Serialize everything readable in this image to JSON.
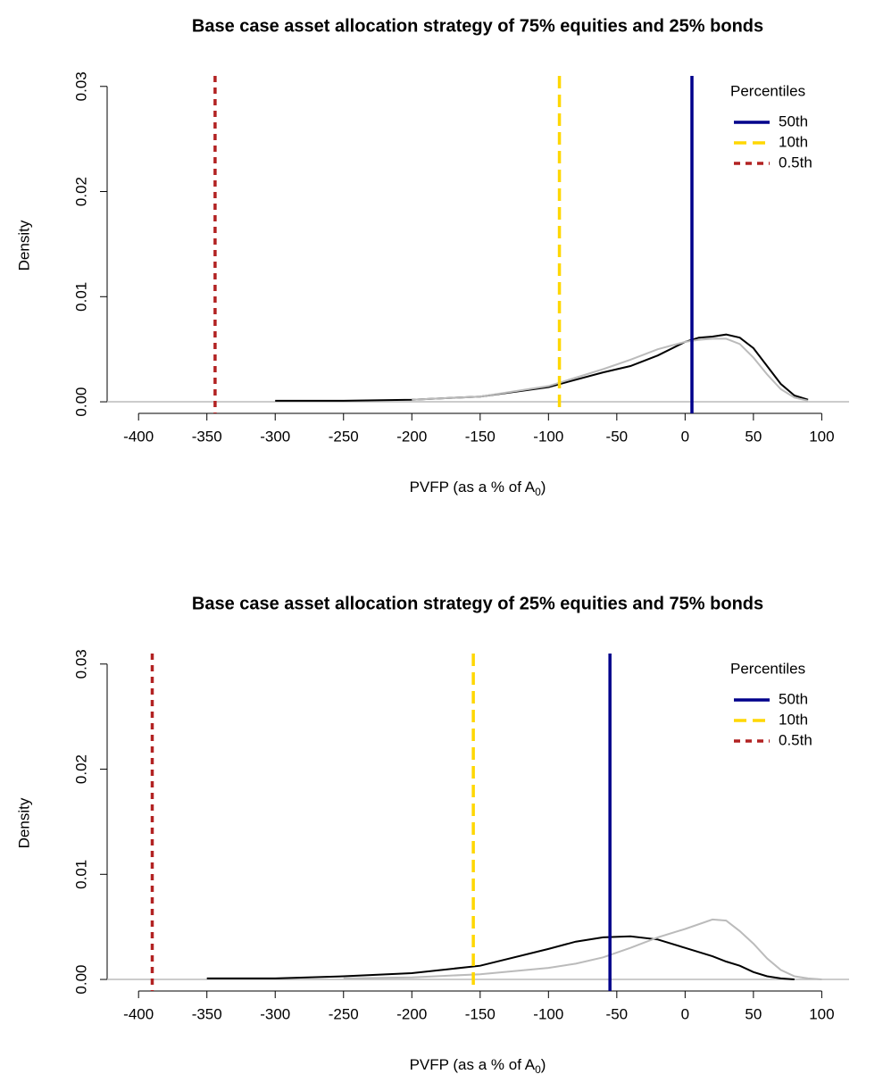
{
  "chart_data": [
    {
      "type": "line",
      "title": "Base case asset allocation strategy of 75% equities and 25% bonds",
      "x_label": {
        "text": "PVFP (as a % of A",
        "subscript": "0",
        "suffix": ")"
      },
      "y_label": "Density",
      "x": [
        -300,
        -250,
        -200,
        -150,
        -100,
        -80,
        -60,
        -40,
        -20,
        0,
        10,
        20,
        30,
        40,
        50,
        60,
        70,
        80,
        90,
        100
      ],
      "series": [
        {
          "color": "#000000",
          "values": [
            0.0001,
            0.0001,
            0.0002,
            0.0005,
            0.0014,
            0.0021,
            0.0028,
            0.0034,
            0.0044,
            0.0057,
            0.0061,
            0.0062,
            0.0064,
            0.0061,
            0.0051,
            0.0034,
            0.0017,
            0.0006,
            0.0002,
            null
          ]
        },
        {
          "color": "#bbbbbb",
          "values": [
            null,
            null,
            0.0002,
            0.0005,
            0.0015,
            0.0023,
            0.0031,
            0.004,
            0.005,
            0.0057,
            0.0059,
            0.006,
            0.006,
            0.0055,
            0.0042,
            0.0026,
            0.0012,
            0.0004,
            0.0001,
            null
          ]
        }
      ],
      "legend_title": "Percentiles",
      "percentiles": [
        {
          "name": "50th",
          "value": 5,
          "color": "#00008b",
          "linestyle": "solid"
        },
        {
          "name": "10th",
          "value": -92,
          "color": "#ffd700",
          "linestyle": "longdash"
        },
        {
          "name": "0.5th",
          "value": -344,
          "color": "#b22222",
          "linestyle": "dashed"
        }
      ],
      "xlim": [
        -423,
        120
      ],
      "xticks": [
        -400,
        -350,
        -300,
        -250,
        -200,
        -150,
        -100,
        -50,
        0,
        50,
        100
      ],
      "ylim": [
        -0.0011,
        0.031
      ],
      "yticks": [
        {
          "value": 0,
          "label": "0.00"
        },
        0.01,
        0.02,
        0.03
      ]
    },
    {
      "type": "line",
      "title": "Base case asset allocation strategy of 25% equities and 75% bonds",
      "x_label": {
        "text": "PVFP (as a % of A",
        "subscript": "0",
        "suffix": ")"
      },
      "y_label": "Density",
      "x": [
        -350,
        -300,
        -250,
        -200,
        -150,
        -100,
        -80,
        -60,
        -40,
        -20,
        0,
        20,
        30,
        40,
        50,
        60,
        70,
        80,
        90,
        100
      ],
      "series": [
        {
          "color": "#000000",
          "values": [
            0.0001,
            0.0001,
            0.0003,
            0.0006,
            0.0013,
            0.0029,
            0.0036,
            0.004,
            0.0041,
            0.0038,
            0.003,
            0.0022,
            0.0017,
            0.0013,
            0.0007,
            0.0003,
            0.0001,
            0,
            null,
            null
          ]
        },
        {
          "color": "#bbbbbb",
          "values": [
            null,
            null,
            0.0001,
            0.0002,
            0.0005,
            0.0011,
            0.0015,
            0.0021,
            0.003,
            0.004,
            0.0048,
            0.0057,
            0.0056,
            0.0046,
            0.0034,
            0.002,
            0.0009,
            0.0003,
            0.0001,
            0
          ]
        }
      ],
      "legend_title": "Percentiles",
      "percentiles": [
        {
          "name": "50th",
          "value": -55,
          "color": "#00008b",
          "linestyle": "solid"
        },
        {
          "name": "10th",
          "value": -155,
          "color": "#ffd700",
          "linestyle": "longdash"
        },
        {
          "name": "0.5th",
          "value": -390,
          "color": "#b22222",
          "linestyle": "dashed"
        }
      ],
      "xlim": [
        -423,
        120
      ],
      "xticks": [
        -400,
        -350,
        -300,
        -250,
        -200,
        -150,
        -100,
        -50,
        0,
        50,
        100
      ],
      "ylim": [
        -0.0011,
        0.031
      ],
      "yticks": [
        {
          "value": 0,
          "label": "0.00"
        },
        0.01,
        0.02,
        0.03
      ]
    }
  ]
}
